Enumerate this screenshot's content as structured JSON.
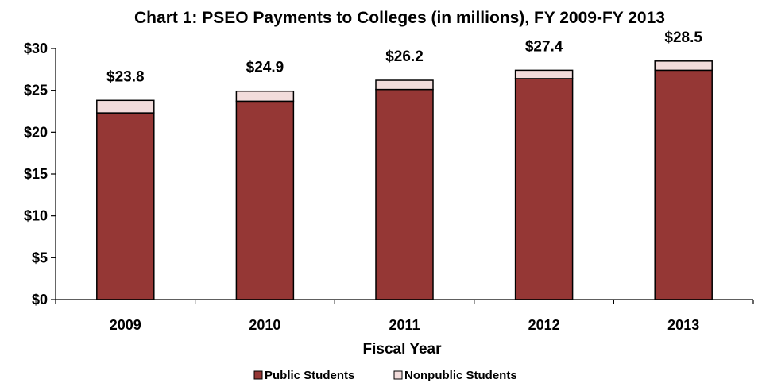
{
  "chart_data": {
    "type": "bar",
    "stacked": true,
    "title": "Chart 1: PSEO Payments to Colleges (in millions), FY 2009-FY 2013",
    "xlabel": "Fiscal Year",
    "ylabel": "",
    "categories": [
      "2009",
      "2010",
      "2011",
      "2012",
      "2013"
    ],
    "series": [
      {
        "name": "Public Students",
        "values": [
          22.3,
          23.7,
          25.1,
          26.4,
          27.4
        ],
        "color": "#953735"
      },
      {
        "name": "Nonpublic Students",
        "values": [
          1.5,
          1.2,
          1.1,
          1.0,
          1.1
        ],
        "color": "#F2DCDB"
      }
    ],
    "totals": [
      23.8,
      24.9,
      26.2,
      27.4,
      28.5
    ],
    "total_labels": [
      "$23.8",
      "$24.9",
      "$26.2",
      "$27.4",
      "$28.5"
    ],
    "ylim": [
      0,
      30
    ],
    "yticks": [
      0,
      5,
      10,
      15,
      20,
      25,
      30
    ],
    "ytick_labels": [
      "$0",
      "$5",
      "$10",
      "$15",
      "$20",
      "$25",
      "$30"
    ],
    "grid": false,
    "legend_position": "bottom"
  }
}
